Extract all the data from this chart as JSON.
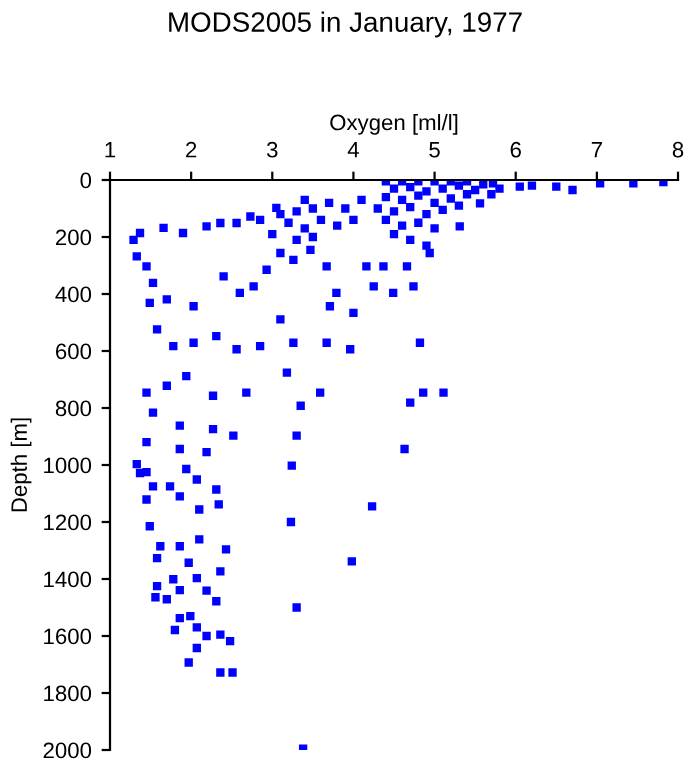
{
  "chart_data": {
    "type": "scatter",
    "title": "MODS2005 in January, 1977",
    "xlabel": "Oxygen [ml/l]",
    "ylabel": "Depth [m]",
    "marker": "square",
    "grid": false,
    "legend": false,
    "xlim": [
      1,
      8
    ],
    "xticks": [
      1,
      2,
      3,
      4,
      5,
      6,
      7,
      8
    ],
    "ylim": [
      2000,
      0
    ],
    "yticks": [
      0,
      200,
      400,
      600,
      800,
      1000,
      1200,
      1400,
      1600,
      1800,
      2000
    ],
    "series": [
      {
        "color": "#0000ff",
        "x": [
          5.72,
          6.05,
          6.5,
          6.7,
          7.04,
          7.45,
          7.82,
          5.56,
          5.31,
          3.05,
          1.29,
          1.37,
          1.66,
          1.9,
          2.19,
          2.36,
          2.56,
          2.73,
          2.85,
          1.33,
          1.45,
          1.53,
          1.49,
          1.7,
          2.03,
          2.4,
          2.6,
          2.77,
          2.93,
          3.1,
          3.26,
          3.47,
          3.67,
          3.79,
          3.71,
          4.0,
          4.25,
          4.49,
          4.74,
          4.94,
          4.66,
          4.37,
          4.16,
          1.58,
          1.78,
          2.03,
          2.31,
          2.56,
          2.85,
          3.1,
          3.26,
          3.67,
          3.96,
          4.82,
          4.86,
          5.11,
          4.7,
          1.45,
          1.7,
          1.94,
          2.27,
          2.68,
          3.18,
          3.59,
          3.35,
          1.53,
          1.86,
          2.27,
          2.52,
          3.3,
          1.45,
          1.86,
          2.19,
          4.63,
          1.33,
          1.45,
          1.94,
          3.24,
          1.37,
          1.53,
          1.74,
          2.07,
          2.31,
          1.45,
          1.86,
          2.1,
          2.34,
          4.23,
          3.23,
          1.49,
          1.62,
          1.86,
          2.1,
          2.43,
          1.58,
          1.97,
          2.36,
          3.98,
          1.78,
          2.07,
          1.58,
          1.86,
          2.19,
          2.31,
          3.3,
          1.56,
          1.7,
          1.86,
          1.99,
          1.8,
          2.07,
          2.19,
          2.36,
          2.48,
          2.07,
          1.97,
          2.36,
          2.51,
          3.38,
          4.4,
          4.6,
          4.8,
          5.0,
          5.2,
          5.4,
          4.5,
          4.7,
          4.9,
          5.1,
          5.3,
          5.5,
          4.4,
          4.6,
          4.8,
          5.0,
          5.2,
          5.4,
          4.3,
          4.5,
          4.7,
          4.9,
          5.1,
          5.3,
          4.4,
          4.6,
          4.8,
          5.0,
          4.5,
          4.7,
          4.9,
          3.1,
          3.3,
          3.5,
          3.2,
          3.4,
          3.6,
          3.0,
          3.3,
          3.5,
          3.8,
          4.0,
          3.9,
          3.7,
          4.1,
          3.4,
          5.6,
          5.8,
          6.2,
          5.7
        ],
        "values": [
          12,
          23,
          23,
          35,
          12,
          12,
          7,
          82,
          163,
          98,
          210,
          186,
          168,
          186,
          163,
          151,
          151,
          128,
          140,
          268,
          303,
          361,
          431,
          419,
          443,
          338,
          396,
          373,
          315,
          256,
          280,
          245,
          303,
          396,
          443,
          466,
          373,
          396,
          373,
          256,
          303,
          303,
          303,
          524,
          583,
          571,
          548,
          594,
          583,
          489,
          571,
          571,
          594,
          571,
          746,
          746,
          781,
          746,
          722,
          688,
          757,
          746,
          676,
          746,
          792,
          816,
          862,
          874,
          897,
          897,
          920,
          944,
          955,
          944,
          997,
          1025,
          1014,
          1002,
          1028,
          1075,
          1075,
          1051,
          1086,
          1121,
          1110,
          1156,
          1138,
          1145,
          1200,
          1215,
          1285,
          1285,
          1261,
          1296,
          1327,
          1343,
          1373,
          1338,
          1401,
          1397,
          1425,
          1439,
          1441,
          1478,
          1500,
          1464,
          1471,
          1537,
          1530,
          1579,
          1570,
          1600,
          1595,
          1618,
          1642,
          1693,
          1728,
          1728,
          1995,
          5,
          5,
          5,
          5,
          5,
          5,
          30,
          25,
          40,
          30,
          20,
          35,
          60,
          70,
          55,
          80,
          65,
          50,
          100,
          110,
          95,
          120,
          105,
          90,
          140,
          160,
          150,
          170,
          190,
          210,
          230,
          120,
          110,
          100,
          150,
          170,
          140,
          190,
          210,
          200,
          160,
          140,
          100,
          80,
          70,
          70,
          15,
          30,
          20,
          50
        ]
      }
    ]
  }
}
